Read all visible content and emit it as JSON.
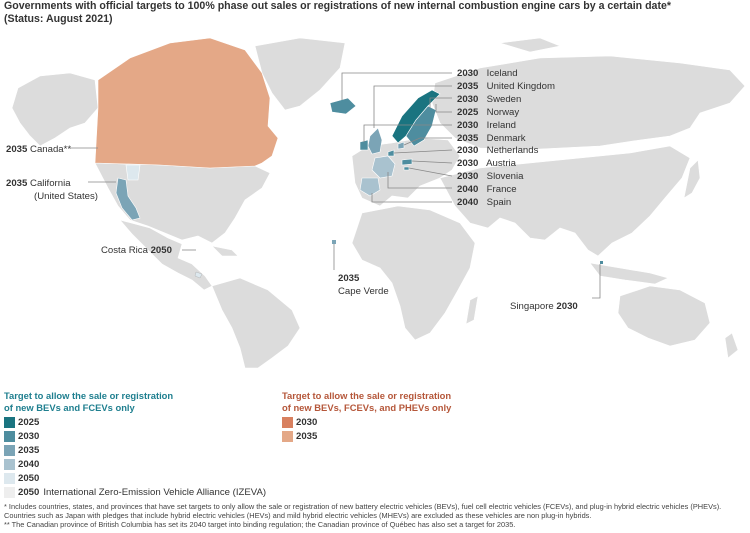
{
  "title": {
    "line1": "Governments with official targets to 100% phase out sales or registrations of new internal combustion engine cars by a certain date*",
    "line2": "(Status: August 2021)"
  },
  "colors": {
    "land": "#dcdcdc",
    "bev2025": "#1a7480",
    "bev2030": "#4e8d9f",
    "bev2035": "#7ba4b6",
    "bev2040": "#a9c2cf",
    "bev2050": "#dde8ee",
    "phev2030": "#d8805f",
    "phev2035": "#e4a887",
    "leader": "#888888"
  },
  "labels": {
    "canada_year": "2035",
    "canada_name": "Canada**",
    "california_year": "2035",
    "california_name": "California",
    "california_sub": "(United States)",
    "costarica_name": "Costa Rica",
    "costarica_year": "2050",
    "capeverde_year": "2035",
    "capeverde_name": "Cape Verde",
    "singapore_name": "Singapore",
    "singapore_year": "2030"
  },
  "europe": [
    {
      "year": "2030",
      "name": "Iceland"
    },
    {
      "year": "2035",
      "name": "United Kingdom"
    },
    {
      "year": "2030",
      "name": "Sweden"
    },
    {
      "year": "2025",
      "name": "Norway"
    },
    {
      "year": "2030",
      "name": "Ireland"
    },
    {
      "year": "2035",
      "name": "Denmark"
    },
    {
      "year": "2030",
      "name": "Netherlands"
    },
    {
      "year": "2030",
      "name": "Austria"
    },
    {
      "year": "2030",
      "name": "Slovenia"
    },
    {
      "year": "2040",
      "name": "France"
    },
    {
      "year": "2040",
      "name": "Spain"
    }
  ],
  "legend": {
    "bev_title1": "Target to allow the sale or registration",
    "bev_title2": "of new BEVs and FCEVs only",
    "bev_items": [
      {
        "year": "2025",
        "text": ""
      },
      {
        "year": "2030",
        "text": ""
      },
      {
        "year": "2035",
        "text": ""
      },
      {
        "year": "2040",
        "text": ""
      },
      {
        "year": "2050",
        "text": ""
      },
      {
        "year": "2050",
        "text": "International Zero-Emission Vehicle Alliance (IZEVA)"
      }
    ],
    "phev_title1": "Target to allow the sale or registration",
    "phev_title2": "of new BEVs, FCEVs, and PHEVs only",
    "phev_items": [
      {
        "year": "2030"
      },
      {
        "year": "2035"
      }
    ]
  },
  "footnotes": {
    "f1": "* Includes countries, states, and provinces that have set targets to only allow the sale or registration of new battery electric vehicles (BEVs), fuel cell electric vehicles (FCEVs), and plug-in hybrid electric vehicles (PHEVs). Countries such as Japan with pledges that include hybrid electric vehicles (HEVs) and mild hybrid electric vehicles (MHEVs) are excluded as these vehicles are non plug-in hybrids.",
    "f2": "** The Canadian province of British Columbia has set its 2040 target into binding regulation; the Canadian province of Québec has also set a target for 2035."
  }
}
